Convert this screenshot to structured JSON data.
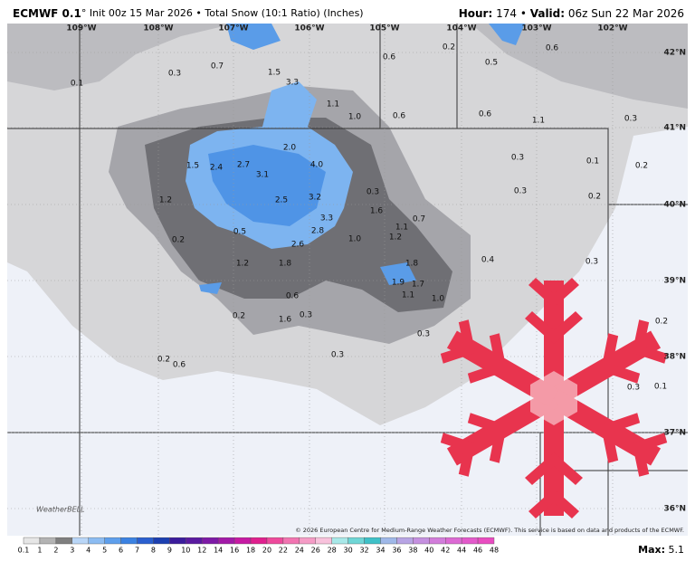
{
  "header": {
    "model": "ECMWF 0.1",
    "info": "° Init 00z 15 Mar 2026 • Total Snow (10:1 Ratio) (Inches)",
    "hour_label": "Hour:",
    "hour": "174",
    "sep": "•",
    "valid_label": "Valid:",
    "valid": "06z Sun 22 Mar 2026"
  },
  "longitudes": [
    "109°W",
    "108°W",
    "107°W",
    "106°W",
    "105°W",
    "104°W",
    "103°W",
    "102°W"
  ],
  "latitudes": [
    "42°N",
    "41°N",
    "40°N",
    "39°N",
    "38°N",
    "37°N",
    "36°N"
  ],
  "map_values": [
    "0.1",
    "0.3",
    "0.7",
    "1.5",
    "3.3",
    "0.6",
    "0.2",
    "0.5",
    "0.6",
    "1.1",
    "1.0",
    "0.6",
    "0.6",
    "1.1",
    "0.3",
    "2.0",
    "4.0",
    "2.7",
    "2.4",
    "1.5",
    "3.1",
    "0.3",
    "0.1",
    "0.2",
    "0.3",
    "0.2",
    "0.3",
    "3.2",
    "2.5",
    "1.2",
    "1.6",
    "3.3",
    "0.7",
    "1.1",
    "2.8",
    "0.5",
    "0.2",
    "1.2",
    "1.0",
    "2.6",
    "0.4",
    "0.3",
    "1.2",
    "1.8",
    "1.8",
    "1.9",
    "1.7",
    "1.1",
    "1.0",
    "0.6",
    "0.2",
    "1.6",
    "0.3",
    "0.2",
    "0.3",
    "0.3",
    "0.2",
    "0.6",
    "0.3",
    "0.1"
  ],
  "copyright": "© 2026 European Centre for Medium-Range Weather Forecasts (ECMWF). This service is based on data and products of the ECMWF.",
  "logo": "WeatherBELL",
  "legend": {
    "ticks": [
      "0.1",
      "1",
      "2",
      "3",
      "4",
      "5",
      "6",
      "7",
      "8",
      "9",
      "10",
      "12",
      "14",
      "16",
      "18",
      "20",
      "22",
      "24",
      "26",
      "28",
      "30",
      "32",
      "34",
      "36",
      "38",
      "40",
      "42",
      "44",
      "46",
      "48"
    ],
    "colors": [
      "#e6e6e6",
      "#b3b3b3",
      "#7f7f7f",
      "#b9d6f7",
      "#8cbcf2",
      "#5e9fec",
      "#3b82e2",
      "#2a5fcf",
      "#1c3fb0",
      "#3b1c9c",
      "#5a1aa0",
      "#7d1aa6",
      "#a21aa8",
      "#c61aa3",
      "#e0208e",
      "#ee4a9c",
      "#f274b1",
      "#f59cc6",
      "#f8c2dc",
      "#a8e8e8",
      "#6fd6d6",
      "#3fc1c8",
      "#9fb8e8",
      "#b7a4e4",
      "#c590e0",
      "#d27ddb",
      "#dc6ad4",
      "#e35acb",
      "#e94cc1"
    ]
  },
  "max": {
    "label": "Max:",
    "value": "5.1"
  }
}
